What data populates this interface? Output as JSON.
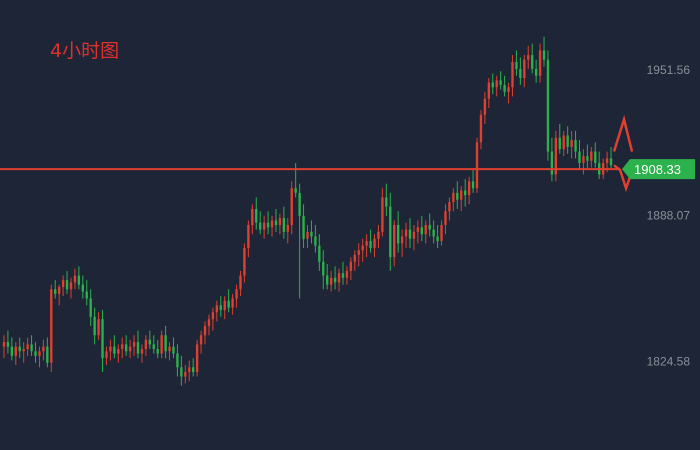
{
  "chart_data": {
    "type": "candlestick",
    "title": "4小时图",
    "y_ticks": [
      1951.56,
      1888.07,
      1824.58
    ],
    "ylim": [
      1786,
      1982
    ],
    "current_price": 1908.33,
    "colors": {
      "up": "#e0402f",
      "down": "#2bb24c",
      "level_line": "#e0402f",
      "price_tag": "#2bb24c",
      "background": "#1e2536"
    },
    "candles": [
      [
        1831,
        1836,
        1826,
        1833
      ],
      [
        1833,
        1838,
        1828,
        1831
      ],
      [
        1831,
        1835,
        1825,
        1827
      ],
      [
        1827,
        1833,
        1823,
        1831
      ],
      [
        1831,
        1835,
        1826,
        1829
      ],
      [
        1829,
        1833,
        1824,
        1830
      ],
      [
        1830,
        1835,
        1827,
        1832
      ],
      [
        1832,
        1836,
        1827,
        1829
      ],
      [
        1829,
        1833,
        1824,
        1827
      ],
      [
        1827,
        1831,
        1822,
        1829
      ],
      [
        1829,
        1834,
        1825,
        1831
      ],
      [
        1831,
        1835,
        1822,
        1824
      ],
      [
        1824,
        1858,
        1820,
        1856
      ],
      [
        1856,
        1860,
        1852,
        1854
      ],
      [
        1854,
        1858,
        1849,
        1857
      ],
      [
        1857,
        1862,
        1853,
        1860
      ],
      [
        1860,
        1864,
        1854,
        1856
      ],
      [
        1856,
        1861,
        1852,
        1859
      ],
      [
        1859,
        1865,
        1856,
        1862
      ],
      [
        1862,
        1866,
        1856,
        1858
      ],
      [
        1858,
        1862,
        1852,
        1855
      ],
      [
        1855,
        1860,
        1849,
        1852
      ],
      [
        1852,
        1856,
        1840,
        1844
      ],
      [
        1844,
        1848,
        1832,
        1836
      ],
      [
        1836,
        1846,
        1834,
        1843
      ],
      [
        1843,
        1847,
        1820,
        1826
      ],
      [
        1826,
        1831,
        1823,
        1829
      ],
      [
        1829,
        1834,
        1825,
        1831
      ],
      [
        1831,
        1836,
        1826,
        1828
      ],
      [
        1828,
        1832,
        1824,
        1830
      ],
      [
        1830,
        1835,
        1826,
        1832
      ],
      [
        1832,
        1836,
        1827,
        1829
      ],
      [
        1829,
        1834,
        1826,
        1831
      ],
      [
        1831,
        1836,
        1827,
        1833
      ],
      [
        1833,
        1838,
        1826,
        1828
      ],
      [
        1828,
        1832,
        1824,
        1830
      ],
      [
        1830,
        1836,
        1827,
        1834
      ],
      [
        1834,
        1838,
        1830,
        1832
      ],
      [
        1832,
        1836,
        1828,
        1830
      ],
      [
        1830,
        1834,
        1826,
        1828
      ],
      [
        1828,
        1838,
        1826,
        1836
      ],
      [
        1836,
        1840,
        1826,
        1829
      ],
      [
        1829,
        1833,
        1825,
        1831
      ],
      [
        1831,
        1835,
        1826,
        1828
      ],
      [
        1828,
        1832,
        1818,
        1822
      ],
      [
        1822,
        1827,
        1814,
        1818
      ],
      [
        1818,
        1823,
        1815,
        1820
      ],
      [
        1820,
        1825,
        1816,
        1822
      ],
      [
        1822,
        1826,
        1818,
        1820
      ],
      [
        1820,
        1834,
        1818,
        1832
      ],
      [
        1832,
        1838,
        1828,
        1836
      ],
      [
        1836,
        1842,
        1832,
        1840
      ],
      [
        1840,
        1845,
        1836,
        1843
      ],
      [
        1843,
        1848,
        1838,
        1846
      ],
      [
        1846,
        1851,
        1842,
        1849
      ],
      [
        1849,
        1853,
        1844,
        1847
      ],
      [
        1847,
        1853,
        1843,
        1851
      ],
      [
        1851,
        1856,
        1846,
        1848
      ],
      [
        1848,
        1854,
        1845,
        1852
      ],
      [
        1852,
        1858,
        1848,
        1856
      ],
      [
        1856,
        1864,
        1853,
        1862
      ],
      [
        1862,
        1876,
        1859,
        1874
      ],
      [
        1874,
        1886,
        1870,
        1884
      ],
      [
        1884,
        1893,
        1880,
        1891
      ],
      [
        1891,
        1896,
        1882,
        1885
      ],
      [
        1885,
        1890,
        1880,
        1882
      ],
      [
        1882,
        1888,
        1878,
        1885
      ],
      [
        1885,
        1890,
        1880,
        1883
      ],
      [
        1883,
        1888,
        1879,
        1886
      ],
      [
        1886,
        1891,
        1881,
        1884
      ],
      [
        1884,
        1889,
        1880,
        1887
      ],
      [
        1887,
        1892,
        1878,
        1881
      ],
      [
        1881,
        1887,
        1876,
        1884
      ],
      [
        1884,
        1903,
        1880,
        1900
      ],
      [
        1900,
        1911,
        1896,
        1898
      ],
      [
        1898,
        1902,
        1852,
        1888
      ],
      [
        1888,
        1893,
        1874,
        1878
      ],
      [
        1878,
        1884,
        1874,
        1881
      ],
      [
        1881,
        1886,
        1876,
        1879
      ],
      [
        1879,
        1884,
        1872,
        1875
      ],
      [
        1875,
        1880,
        1864,
        1868
      ],
      [
        1868,
        1873,
        1856,
        1862
      ],
      [
        1862,
        1867,
        1856,
        1858
      ],
      [
        1858,
        1864,
        1855,
        1861
      ],
      [
        1861,
        1866,
        1856,
        1859
      ],
      [
        1859,
        1865,
        1855,
        1863
      ],
      [
        1863,
        1868,
        1858,
        1861
      ],
      [
        1861,
        1866,
        1858,
        1864
      ],
      [
        1864,
        1870,
        1860,
        1868
      ],
      [
        1868,
        1873,
        1864,
        1871
      ],
      [
        1871,
        1876,
        1866,
        1873
      ],
      [
        1873,
        1878,
        1868,
        1875
      ],
      [
        1875,
        1880,
        1870,
        1877
      ],
      [
        1877,
        1882,
        1872,
        1874
      ],
      [
        1874,
        1880,
        1870,
        1878
      ],
      [
        1878,
        1884,
        1874,
        1881
      ],
      [
        1881,
        1900,
        1879,
        1896
      ],
      [
        1896,
        1902,
        1888,
        1892
      ],
      [
        1892,
        1898,
        1864,
        1870
      ],
      [
        1870,
        1886,
        1866,
        1884
      ],
      [
        1884,
        1890,
        1872,
        1876
      ],
      [
        1876,
        1882,
        1870,
        1879
      ],
      [
        1879,
        1885,
        1874,
        1882
      ],
      [
        1882,
        1887,
        1874,
        1878
      ],
      [
        1878,
        1884,
        1873,
        1881
      ],
      [
        1881,
        1886,
        1876,
        1883
      ],
      [
        1883,
        1888,
        1877,
        1880
      ],
      [
        1880,
        1886,
        1876,
        1884
      ],
      [
        1884,
        1889,
        1879,
        1882
      ],
      [
        1882,
        1886,
        1876,
        1879
      ],
      [
        1879,
        1884,
        1874,
        1877
      ],
      [
        1877,
        1886,
        1875,
        1884
      ],
      [
        1884,
        1893,
        1880,
        1890
      ],
      [
        1890,
        1896,
        1886,
        1894
      ],
      [
        1894,
        1900,
        1890,
        1898
      ],
      [
        1898,
        1903,
        1891,
        1895
      ],
      [
        1895,
        1901,
        1890,
        1899
      ],
      [
        1899,
        1904,
        1892,
        1897
      ],
      [
        1897,
        1905,
        1893,
        1903
      ],
      [
        1903,
        1908,
        1898,
        1900
      ],
      [
        1900,
        1922,
        1898,
        1920
      ],
      [
        1920,
        1934,
        1917,
        1932
      ],
      [
        1932,
        1942,
        1928,
        1939
      ],
      [
        1939,
        1948,
        1935,
        1946
      ],
      [
        1946,
        1950,
        1941,
        1944
      ],
      [
        1944,
        1949,
        1940,
        1947
      ],
      [
        1947,
        1951,
        1943,
        1945
      ],
      [
        1945,
        1949,
        1940,
        1942
      ],
      [
        1942,
        1946,
        1937,
        1944
      ],
      [
        1944,
        1958,
        1940,
        1955
      ],
      [
        1955,
        1960,
        1949,
        1952
      ],
      [
        1952,
        1957,
        1945,
        1948
      ],
      [
        1948,
        1958,
        1944,
        1956
      ],
      [
        1956,
        1962,
        1952,
        1958
      ],
      [
        1958,
        1963,
        1950,
        1952
      ],
      [
        1952,
        1956,
        1946,
        1949
      ],
      [
        1949,
        1963,
        1946,
        1960
      ],
      [
        1960,
        1966,
        1953,
        1956
      ],
      [
        1956,
        1960,
        1912,
        1916
      ],
      [
        1916,
        1922,
        1903,
        1906
      ],
      [
        1906,
        1925,
        1903,
        1922
      ],
      [
        1922,
        1928,
        1915,
        1917
      ],
      [
        1917,
        1925,
        1914,
        1923
      ],
      [
        1923,
        1927,
        1915,
        1918
      ],
      [
        1918,
        1925,
        1913,
        1921
      ],
      [
        1921,
        1925,
        1913,
        1916
      ],
      [
        1916,
        1921,
        1908,
        1911
      ],
      [
        1911,
        1917,
        1906,
        1914
      ],
      [
        1914,
        1919,
        1908,
        1912
      ],
      [
        1912,
        1918,
        1909,
        1916
      ],
      [
        1916,
        1920,
        1909,
        1911
      ],
      [
        1911,
        1916,
        1904,
        1906
      ],
      [
        1906,
        1913,
        1904,
        1911
      ],
      [
        1911,
        1916,
        1907,
        1913
      ],
      [
        1913,
        1918,
        1908,
        1910
      ]
    ]
  }
}
